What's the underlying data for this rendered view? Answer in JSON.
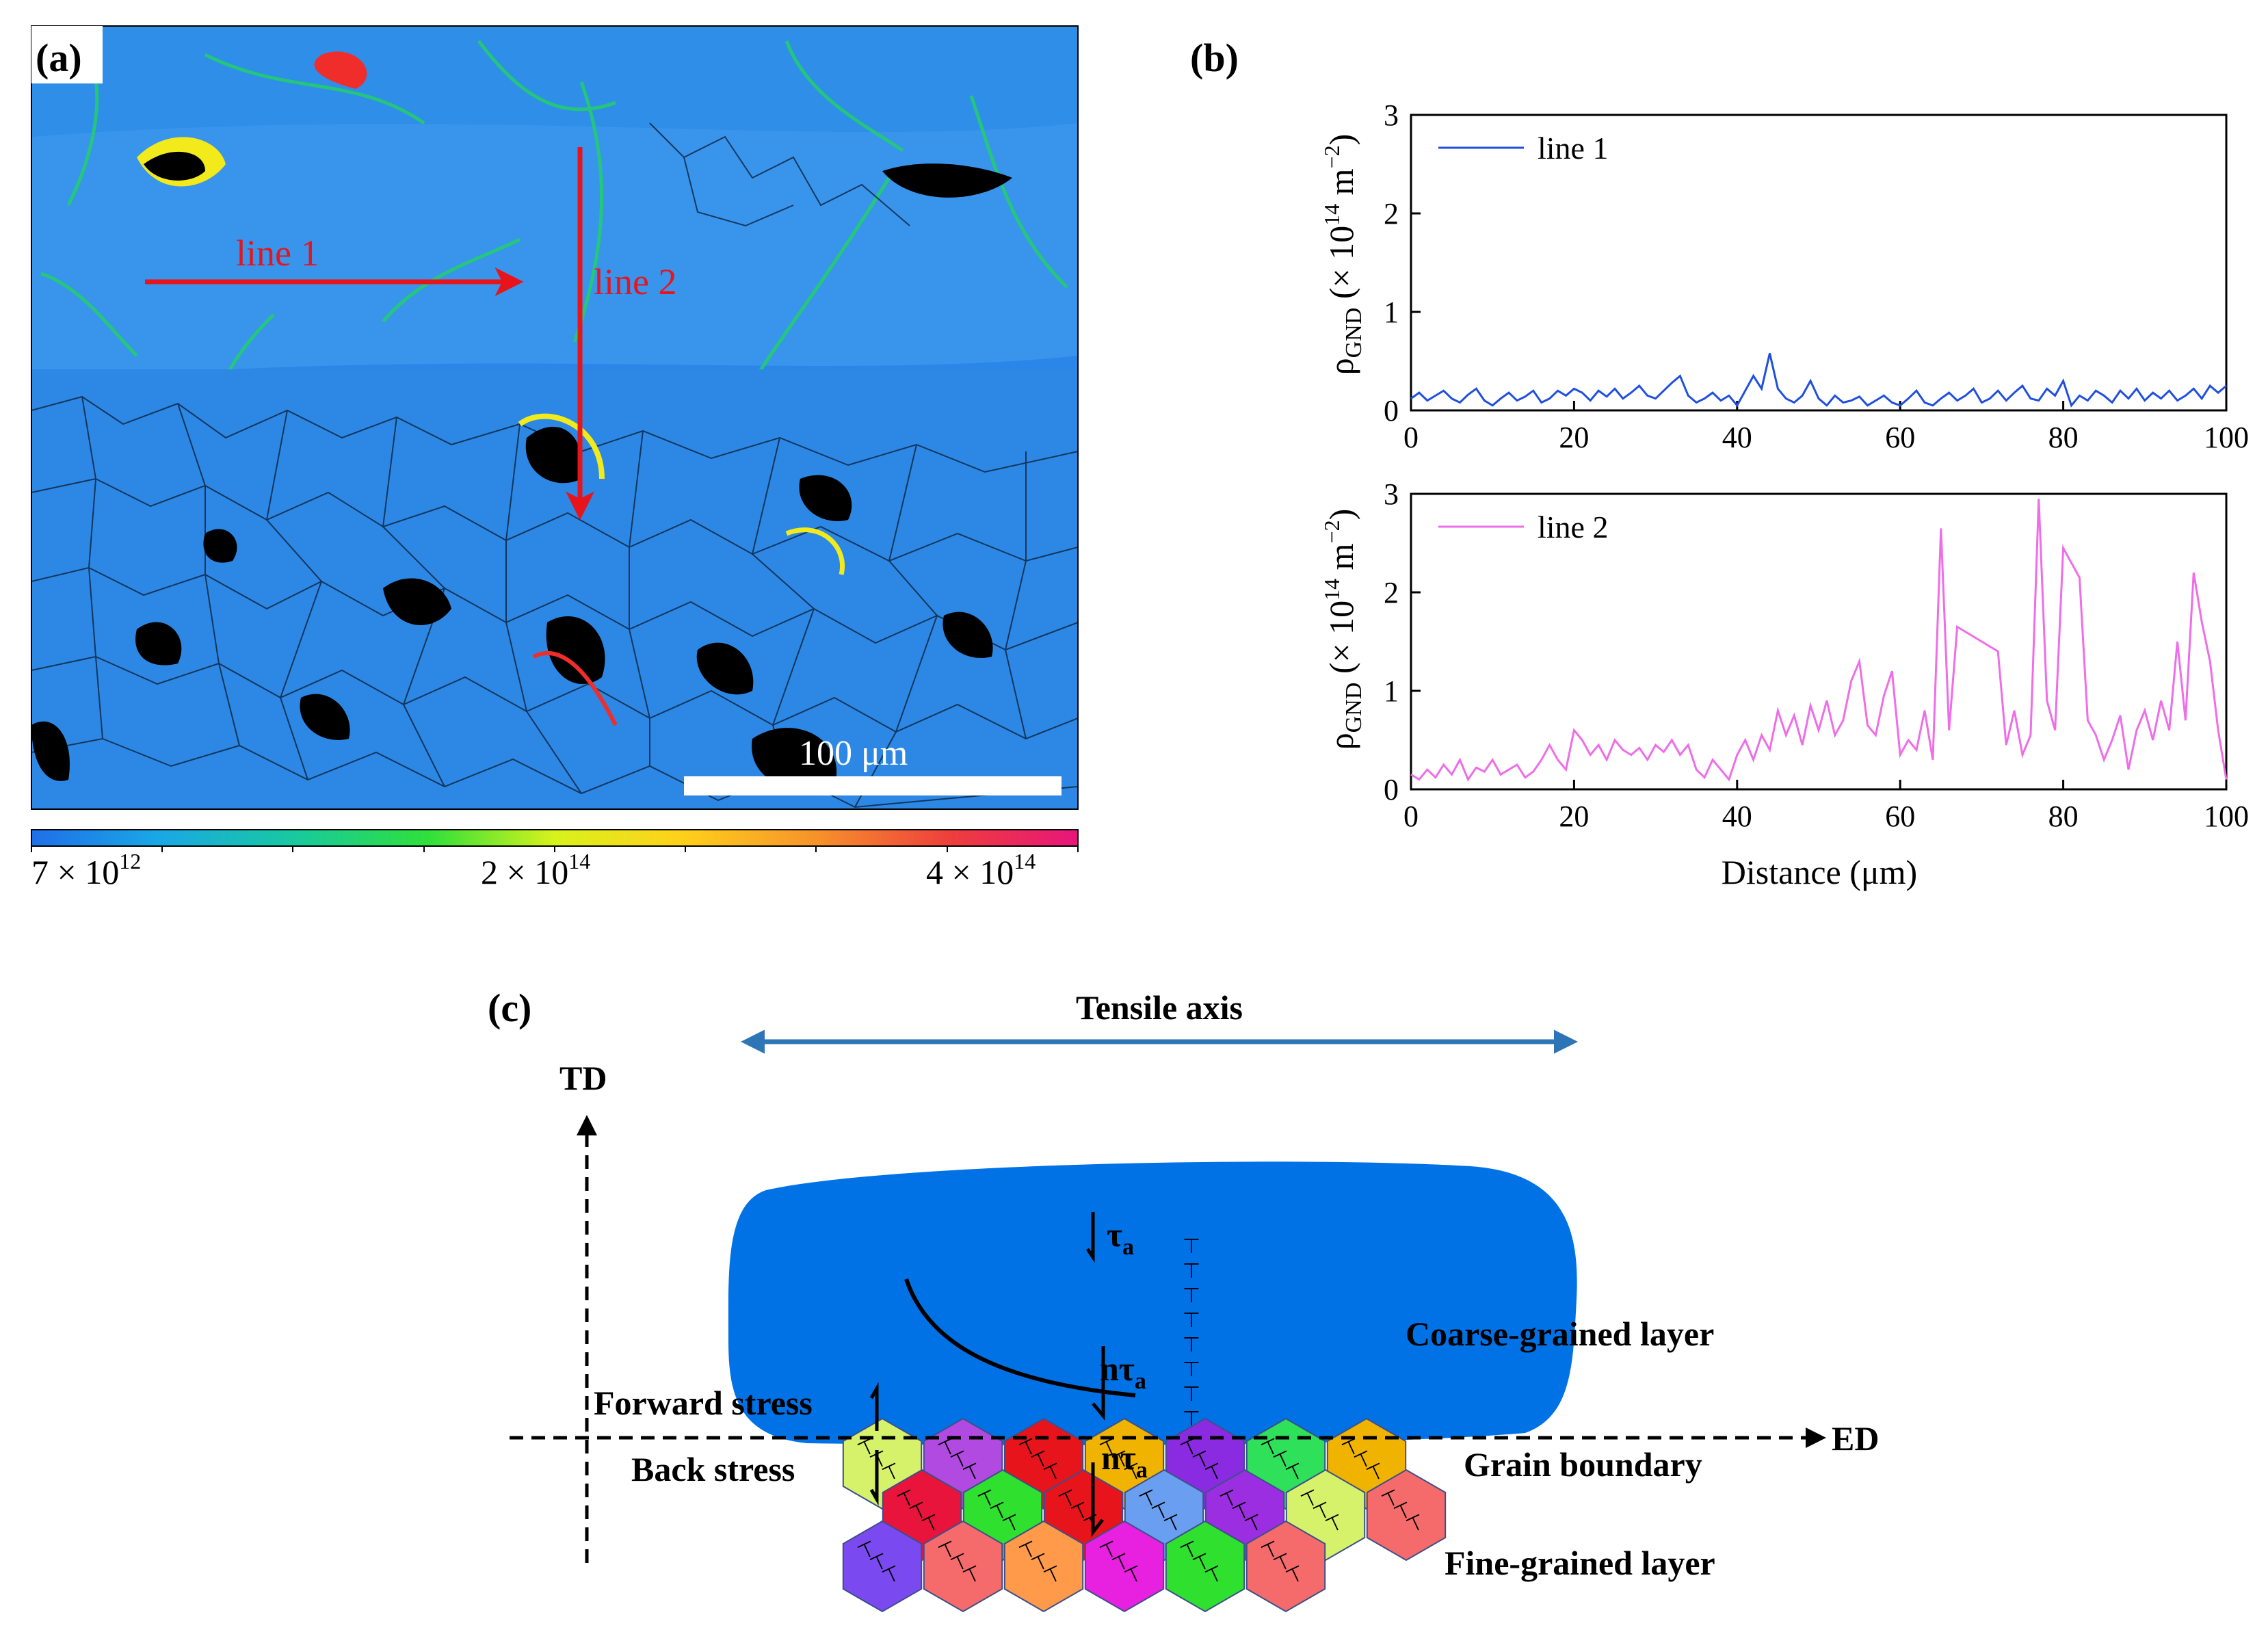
{
  "panels": {
    "a": {
      "label": "(a)",
      "lines": [
        {
          "label": "line 1",
          "direction": "horizontal"
        },
        {
          "label": "line 2",
          "direction": "vertical"
        }
      ],
      "scale_bar": "100 μm",
      "colorbar": {
        "min_label": "7 × 10",
        "min_exp": "12",
        "mid_label": "2 × 10",
        "mid_exp": "14",
        "max_label": "4 × 10",
        "max_exp": "14",
        "colors": [
          "#1f6fe8",
          "#1aa7e6",
          "#18c9a0",
          "#2fe03a",
          "#d8f21c",
          "#ffd11a",
          "#f6922b",
          "#ee3d3d",
          "#e8157c"
        ]
      },
      "map_colors": {
        "background": "#2a86e8",
        "band": "#39a2ee",
        "green": "#22d06a",
        "yellow": "#f2ea1a",
        "red": "#ef2d2a",
        "void": "#000000"
      }
    },
    "b": {
      "label": "(b)",
      "xlabel": "Distance (μm)",
      "ylabel_rho": "ρ",
      "ylabel_sub": "GND",
      "ylabel_rest": " (× 10",
      "ylabel_exp": "14",
      "ylabel_unit": " m",
      "ylabel_unit_exp": "−2",
      "ylabel_close": ")"
    },
    "c": {
      "label": "(c)",
      "tensile_axis": "Tensile axis",
      "td": "TD",
      "ed": "ED",
      "coarse": "Coarse-grained layer",
      "grain_boundary": "Grain boundary",
      "fine": "Fine-grained layer",
      "forward_stress": "Forward stress",
      "back_stress": "Back stress",
      "tau_upper": "τ",
      "tau_upper_sub": "a",
      "ntau_mid": "nτ",
      "ntau_mid_sub": "a",
      "ntau_low": "nτ",
      "ntau_low_sub": "a",
      "dislocation_symbol": "⊤",
      "coarse_color": "#0072e6",
      "arrow_color": "#2e75b6",
      "grain_colors": [
        "#d6f26a",
        "#b04ae0",
        "#e8141b",
        "#f0b400",
        "#8a2be2",
        "#2ee05a",
        "#f0b400",
        "#e8143c",
        "#2fe02f",
        "#e8141b",
        "#6a9ef0",
        "#9b2ee0",
        "#d6f26a",
        "#f56b6b",
        "#7a4af0",
        "#f56b6b",
        "#ff9a4a",
        "#e820e0",
        "#2fe02f",
        "#f56b6b"
      ]
    }
  },
  "chart_data": [
    {
      "type": "line",
      "title": "",
      "xlabel": "",
      "ylabel": "ρGND (× 10^14 m^-2)",
      "xlim": [
        0,
        100
      ],
      "ylim": [
        0,
        3
      ],
      "xticks": [
        "0",
        "20",
        "40",
        "60",
        "80",
        "100"
      ],
      "yticks": [
        "0",
        "1",
        "2",
        "3"
      ],
      "series": [
        {
          "name": "line 1",
          "color": "#1f4fe0",
          "x": [
            0,
            1,
            2,
            3,
            4,
            5,
            6,
            7,
            8,
            9,
            10,
            11,
            12,
            13,
            14,
            15,
            16,
            17,
            18,
            19,
            20,
            21,
            22,
            23,
            24,
            25,
            26,
            27,
            28,
            29,
            30,
            31,
            32,
            33,
            34,
            35,
            36,
            37,
            38,
            39,
            40,
            41,
            42,
            43,
            44,
            45,
            46,
            47,
            48,
            49,
            50,
            51,
            52,
            53,
            54,
            55,
            56,
            57,
            58,
            59,
            60,
            61,
            62,
            63,
            64,
            65,
            66,
            67,
            68,
            69,
            70,
            71,
            72,
            73,
            74,
            75,
            76,
            77,
            78,
            79,
            80,
            81,
            82,
            83,
            84,
            85,
            86,
            87,
            88,
            89,
            90,
            91,
            92,
            93,
            94,
            95,
            96,
            97,
            98,
            99,
            100
          ],
          "values": [
            0.12,
            0.18,
            0.1,
            0.15,
            0.2,
            0.12,
            0.08,
            0.16,
            0.22,
            0.1,
            0.05,
            0.12,
            0.18,
            0.1,
            0.14,
            0.2,
            0.08,
            0.12,
            0.2,
            0.15,
            0.22,
            0.18,
            0.1,
            0.2,
            0.14,
            0.22,
            0.12,
            0.18,
            0.25,
            0.15,
            0.12,
            0.2,
            0.28,
            0.35,
            0.15,
            0.08,
            0.12,
            0.18,
            0.1,
            0.15,
            0.05,
            0.2,
            0.35,
            0.22,
            0.58,
            0.22,
            0.12,
            0.08,
            0.15,
            0.3,
            0.12,
            0.05,
            0.15,
            0.08,
            0.1,
            0.14,
            0.05,
            0.1,
            0.15,
            0.08,
            0.05,
            0.12,
            0.2,
            0.08,
            0.05,
            0.12,
            0.18,
            0.1,
            0.15,
            0.22,
            0.08,
            0.12,
            0.2,
            0.1,
            0.18,
            0.25,
            0.12,
            0.1,
            0.22,
            0.15,
            0.3,
            0.05,
            0.15,
            0.1,
            0.2,
            0.15,
            0.08,
            0.2,
            0.12,
            0.22,
            0.1,
            0.18,
            0.12,
            0.2,
            0.1,
            0.15,
            0.22,
            0.12,
            0.25,
            0.18,
            0.25
          ]
        }
      ],
      "legend": "top-left"
    },
    {
      "type": "line",
      "title": "",
      "xlabel": "Distance (μm)",
      "ylabel": "ρGND (× 10^14 m^-2)",
      "xlim": [
        0,
        100
      ],
      "ylim": [
        0,
        3
      ],
      "xticks": [
        "0",
        "20",
        "40",
        "60",
        "80",
        "100"
      ],
      "yticks": [
        "0",
        "1",
        "2",
        "3"
      ],
      "series": [
        {
          "name": "line 2",
          "color": "#ee6de8",
          "x": [
            0,
            1,
            2,
            3,
            4,
            5,
            6,
            7,
            8,
            9,
            10,
            11,
            12,
            13,
            14,
            15,
            16,
            17,
            18,
            19,
            20,
            21,
            22,
            23,
            24,
            25,
            26,
            27,
            28,
            29,
            30,
            31,
            32,
            33,
            34,
            35,
            36,
            37,
            38,
            39,
            40,
            41,
            42,
            43,
            44,
            45,
            46,
            47,
            48,
            49,
            50,
            51,
            52,
            53,
            54,
            55,
            56,
            57,
            58,
            59,
            60,
            61,
            62,
            63,
            64,
            65,
            66,
            67,
            72,
            73,
            74,
            75,
            76,
            77,
            78,
            79,
            80,
            82,
            83,
            84,
            85,
            86,
            87,
            88,
            89,
            90,
            91,
            92,
            93,
            94,
            95,
            96,
            97,
            98,
            99,
            100
          ],
          "values": [
            0.15,
            0.1,
            0.2,
            0.12,
            0.25,
            0.15,
            0.3,
            0.1,
            0.22,
            0.18,
            0.3,
            0.15,
            0.2,
            0.25,
            0.12,
            0.18,
            0.3,
            0.45,
            0.3,
            0.2,
            0.6,
            0.5,
            0.35,
            0.45,
            0.3,
            0.5,
            0.4,
            0.35,
            0.42,
            0.3,
            0.45,
            0.38,
            0.5,
            0.35,
            0.45,
            0.2,
            0.12,
            0.3,
            0.2,
            0.1,
            0.35,
            0.5,
            0.3,
            0.55,
            0.4,
            0.8,
            0.55,
            0.75,
            0.45,
            0.85,
            0.6,
            0.9,
            0.55,
            0.7,
            1.1,
            1.3,
            0.65,
            0.55,
            0.95,
            1.2,
            0.35,
            0.5,
            0.4,
            0.8,
            0.3,
            2.65,
            0.6,
            1.65,
            1.4,
            0.45,
            0.8,
            0.35,
            0.55,
            2.95,
            0.9,
            0.6,
            2.45,
            2.15,
            0.7,
            0.55,
            0.3,
            0.5,
            0.75,
            0.2,
            0.6,
            0.8,
            0.5,
            0.9,
            0.6,
            1.5,
            0.7,
            2.2,
            1.7,
            1.3,
            0.6,
            0.1
          ]
        }
      ],
      "legend": "top-left"
    }
  ]
}
